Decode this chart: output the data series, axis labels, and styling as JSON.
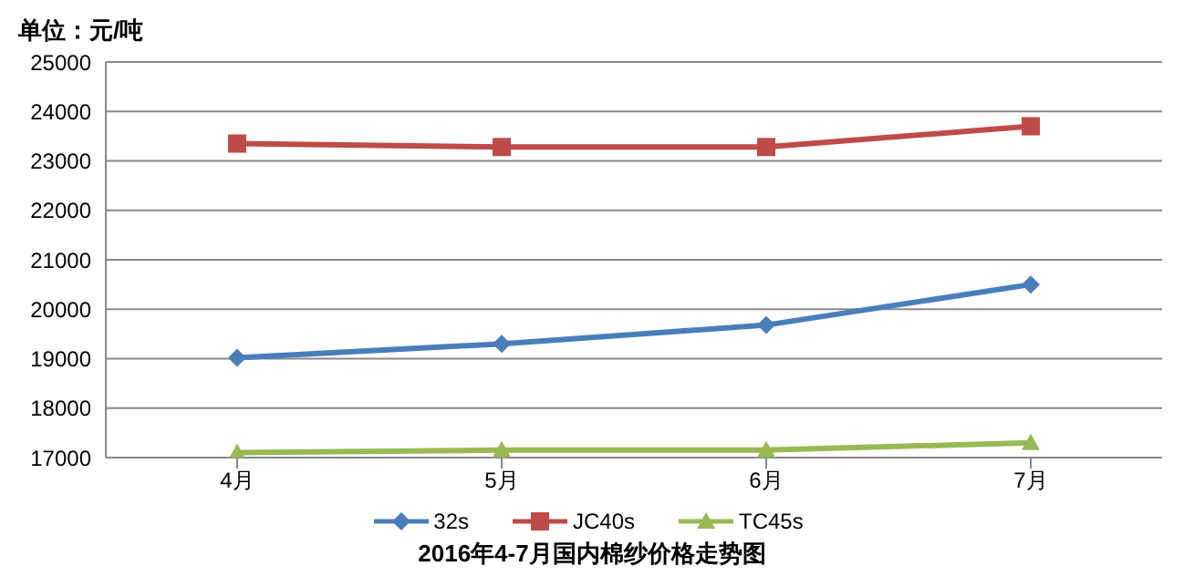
{
  "chart_data": {
    "type": "line",
    "title": "2016年4-7月国内棉纱价格走势图",
    "ylabel": "单位：元/吨",
    "categories": [
      "4月",
      "5月",
      "6月",
      "7月"
    ],
    "series": [
      {
        "name": "32s",
        "color": "#4a7ebb",
        "marker": "diamond",
        "values": [
          19020,
          19300,
          19680,
          20500
        ]
      },
      {
        "name": "JC40s",
        "color": "#be4b48",
        "marker": "square",
        "values": [
          23350,
          23280,
          23280,
          23700
        ]
      },
      {
        "name": "TC45s",
        "color": "#98b954",
        "marker": "triangle",
        "values": [
          17100,
          17150,
          17150,
          17300
        ]
      }
    ],
    "ylim": [
      17000,
      25000
    ],
    "yticks": [
      17000,
      18000,
      19000,
      20000,
      21000,
      22000,
      23000,
      24000,
      25000
    ],
    "grid": "y",
    "legend": "bottom",
    "line_style": "solid"
  }
}
